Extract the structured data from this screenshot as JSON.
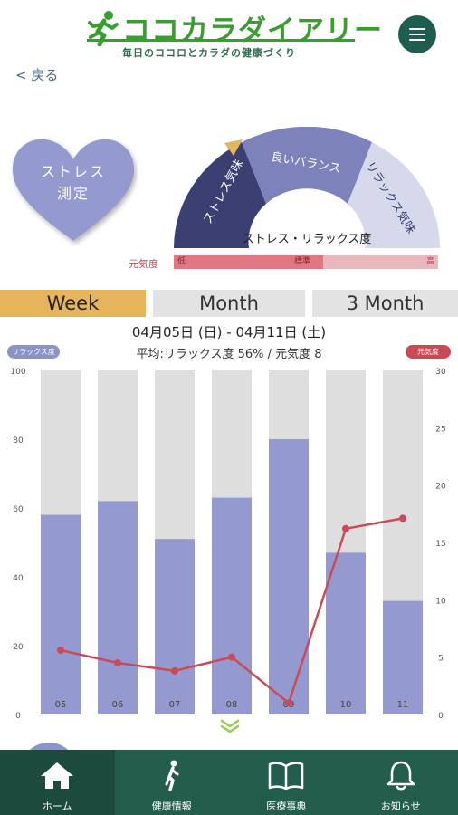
{
  "header": {
    "app_title": "ココカラダイアリー",
    "subtitle": "毎日のココロとカラダの健康づくり",
    "menu_icon": "hamburger-icon",
    "back_label": "< 戻る"
  },
  "heart": {
    "line1": "ストレス",
    "line2": "測定"
  },
  "gauge": {
    "stress_label": "ストレス気味",
    "balance_label": "良いバランス",
    "relax_label": "リラックス気味",
    "center_label": "ストレス・リラックス度",
    "colors": {
      "stress": "#3b3f72",
      "balance": "#7d82bb",
      "relax": "#d6d8ec",
      "indicator": "#e6b45a"
    }
  },
  "genki": {
    "label": "元気度",
    "low": "低",
    "mid": "標準",
    "high": "高"
  },
  "tabs": [
    {
      "label": "Week",
      "active": true
    },
    {
      "label": "Month",
      "active": false
    },
    {
      "label": "3 Month",
      "active": false
    }
  ],
  "period": {
    "date_range": "04月05日 (日) - 04月11日 (土)",
    "average": "平均:リラックス度 56% / 元気度 8"
  },
  "legend": {
    "left": "リラックス度",
    "right": "元気度"
  },
  "chart_data": {
    "type": "bar",
    "categories": [
      "05",
      "06",
      "07",
      "08",
      "09",
      "10",
      "11"
    ],
    "series": [
      {
        "name": "リラックス度",
        "type": "bar",
        "axis": "left",
        "values": [
          58,
          62,
          51,
          63,
          80,
          47,
          33
        ],
        "color": "#9499cf"
      },
      {
        "name": "元気度",
        "type": "line",
        "axis": "right",
        "values": [
          5.6,
          4.5,
          3.8,
          5.0,
          1.0,
          16.2,
          17.1
        ],
        "color": "#cc4a55"
      }
    ],
    "bar_background": "#dedede",
    "ylim_left": [
      0,
      100
    ],
    "yticks_left": [
      "0",
      "20",
      "40",
      "60",
      "80",
      "100"
    ],
    "ylim_right": [
      0,
      30
    ],
    "yticks_right": [
      "0",
      "5",
      "10",
      "15",
      "20",
      "25",
      "30"
    ]
  },
  "bottom_nav": [
    {
      "label": "ホーム",
      "icon": "home-icon",
      "active": true
    },
    {
      "label": "健康情報",
      "icon": "walking-person-icon",
      "active": false
    },
    {
      "label": "医療事典",
      "icon": "book-icon",
      "active": false
    },
    {
      "label": "お知らせ",
      "icon": "bell-icon",
      "active": false
    }
  ]
}
